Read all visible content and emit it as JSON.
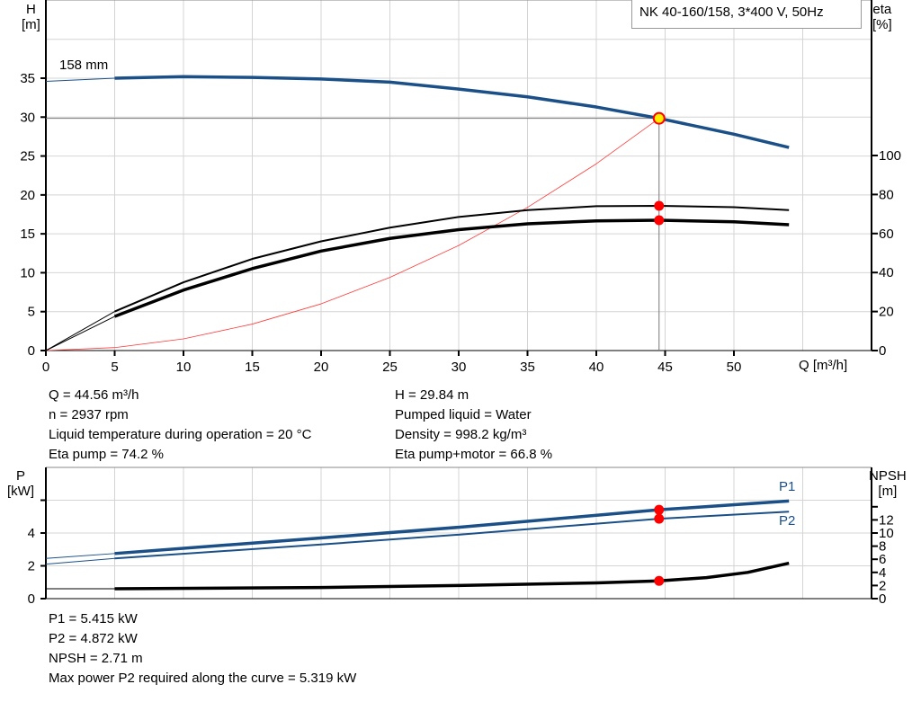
{
  "title": "NK 40-160/158, 3*400 V, 50Hz",
  "colors": {
    "head": "#1a4f87",
    "power": "#1a4f87",
    "eta": "#000000",
    "system": "#ff3b3b",
    "point": "#ff0000",
    "op_point_fill": "#ffee00"
  },
  "chart_data": [
    {
      "type": "line",
      "ylabel": "H",
      "yunit": "[m]",
      "y2label": "eta",
      "y2unit": "[%]",
      "xlabel": "Q [m³/h]",
      "xlim": [
        0,
        60
      ],
      "ylim": [
        0,
        40
      ],
      "y2lim": [
        0,
        100
      ],
      "xticks": [
        0,
        5,
        10,
        15,
        20,
        25,
        30,
        35,
        40,
        45,
        50
      ],
      "yticks": [
        0,
        5,
        10,
        15,
        20,
        25,
        30,
        35
      ],
      "y2ticks": [
        0,
        20,
        40,
        60,
        80,
        100
      ],
      "grid": true,
      "curve_label": "158 mm",
      "series": [
        {
          "key": "head",
          "axis": "left",
          "x": [
            0,
            5,
            10,
            15,
            20,
            25,
            30,
            35,
            40,
            44.56,
            50,
            54
          ],
          "y": [
            34.6,
            35.0,
            35.2,
            35.1,
            34.9,
            34.5,
            33.6,
            32.6,
            31.3,
            29.84,
            27.8,
            26.1
          ]
        },
        {
          "key": "eta_pump",
          "axis": "right",
          "x": [
            0,
            5,
            10,
            15,
            20,
            25,
            30,
            35,
            40,
            44.56,
            50,
            54
          ],
          "y": [
            0,
            20,
            35,
            47,
            56,
            63,
            68.5,
            72,
            74,
            74.2,
            73.5,
            72
          ]
        },
        {
          "key": "eta_pump_motor",
          "axis": "right",
          "x": [
            0,
            5,
            10,
            15,
            20,
            25,
            30,
            35,
            40,
            44.56,
            50,
            54
          ],
          "y": [
            0,
            17.5,
            31,
            42,
            51,
            57.5,
            62,
            65,
            66.5,
            66.8,
            66,
            64.5
          ]
        },
        {
          "key": "system_curve",
          "axis": "left",
          "x": [
            0,
            5,
            10,
            15,
            20,
            25,
            30,
            35,
            40,
            44.56
          ],
          "y": [
            0,
            0.38,
            1.5,
            3.4,
            6.0,
            9.4,
            13.5,
            18.4,
            24.0,
            29.84
          ]
        }
      ],
      "operating_point": {
        "Q": 44.56,
        "H": 29.84,
        "eta_pump": 74.2,
        "eta_pump_motor": 66.8
      }
    },
    {
      "type": "line",
      "ylabel": "P",
      "yunit": "[kW]",
      "y2label": "NPSH",
      "y2unit": "[m]",
      "xlim": [
        0,
        60
      ],
      "ylim": [
        0,
        8
      ],
      "y2lim": [
        0,
        16
      ],
      "yticks": [
        0,
        2,
        4,
        6
      ],
      "yticklabels": [
        "0",
        "2",
        "4",
        ""
      ],
      "y2ticks": [
        0,
        2,
        4,
        6,
        8,
        10,
        12,
        14
      ],
      "y2ticklabels": [
        "0",
        "2",
        "4",
        "6",
        "8",
        "10",
        "12",
        ""
      ],
      "grid": true,
      "series": [
        {
          "key": "P1",
          "name": "P1",
          "axis": "left",
          "x": [
            0,
            5,
            20,
            30,
            44.56,
            54
          ],
          "y": [
            2.45,
            2.75,
            3.7,
            4.35,
            5.415,
            5.95
          ]
        },
        {
          "key": "P2",
          "name": "P2",
          "axis": "left",
          "x": [
            0,
            5,
            20,
            30,
            44.56,
            54
          ],
          "y": [
            2.1,
            2.45,
            3.3,
            3.9,
            4.872,
            5.3
          ]
        },
        {
          "key": "NPSH",
          "axis": "right",
          "x": [
            0,
            5,
            20,
            30,
            40,
            44.56,
            48,
            51,
            54
          ],
          "y": [
            1.5,
            1.5,
            1.7,
            2.0,
            2.4,
            2.71,
            3.2,
            4.0,
            5.4
          ]
        }
      ],
      "operating_point": {
        "Q": 44.56,
        "P1": 5.415,
        "P2": 4.872,
        "NPSH": 2.71
      }
    }
  ],
  "info_left": [
    "Q = 44.56 m³/h",
    "n = 2937 rpm",
    "Liquid temperature during operation = 20 °C",
    "Eta pump = 74.2 %"
  ],
  "info_right": [
    "H = 29.84 m",
    "Pumped liquid = Water",
    "Density = 998.2 kg/m³",
    "Eta pump+motor = 66.8 %"
  ],
  "info_bottom": [
    "P1 = 5.415 kW",
    "P2 = 4.872 kW",
    "NPSH = 2.71 m",
    "Max power P2 required along the curve = 5.319 kW"
  ]
}
